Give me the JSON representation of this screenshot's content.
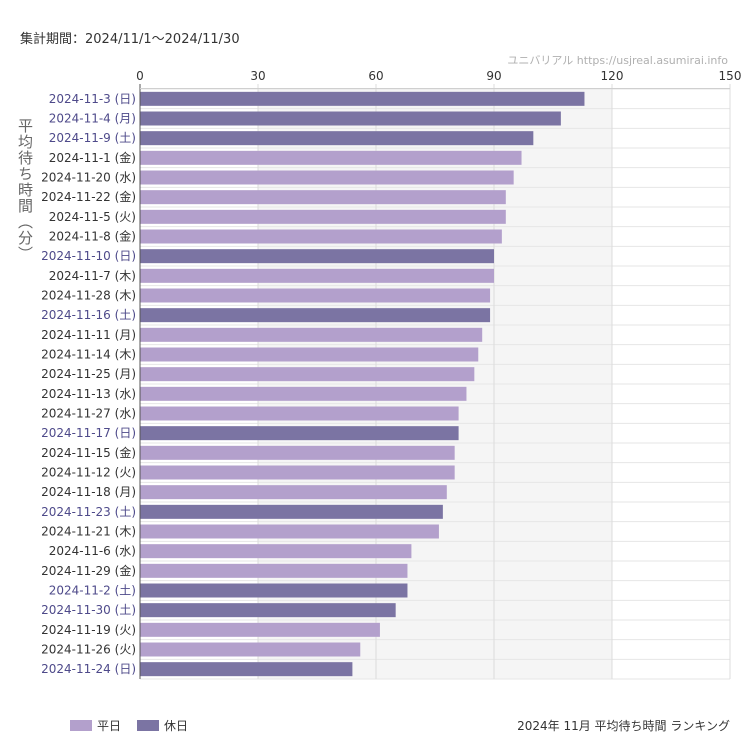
{
  "header": {
    "period": "集計期間：2024/11/1〜2024/11/30",
    "source": "ユニバリアル  https://usjreal.asumirai.info"
  },
  "footer": {
    "caption": "2024年 11月 平均待ち時間 ランキング"
  },
  "colors": {
    "weekday": "#b3a0cc",
    "holiday": "#7b74a3",
    "holiday_label": "#4e4a8a",
    "weekday_label": "#333333"
  },
  "chart_data": {
    "type": "bar",
    "orientation": "horizontal",
    "title": "",
    "ylabel": "平均待ち時間（分）",
    "xlim": [
      0,
      150
    ],
    "xticks": [
      0,
      30,
      60,
      90,
      120,
      150
    ],
    "shaded_range": [
      30,
      120
    ],
    "grid": true,
    "legend_position": "bottom-left",
    "legend": [
      {
        "key": "weekday",
        "label": "平日"
      },
      {
        "key": "holiday",
        "label": "休日"
      }
    ],
    "categories": [
      "2024-11-3 (日)",
      "2024-11-4 (月)",
      "2024-11-9 (土)",
      "2024-11-1 (金)",
      "2024-11-20 (水)",
      "2024-11-22 (金)",
      "2024-11-5 (火)",
      "2024-11-8 (金)",
      "2024-11-10 (日)",
      "2024-11-7 (木)",
      "2024-11-28 (木)",
      "2024-11-16 (土)",
      "2024-11-11 (月)",
      "2024-11-14 (木)",
      "2024-11-25 (月)",
      "2024-11-13 (水)",
      "2024-11-27 (水)",
      "2024-11-17 (日)",
      "2024-11-15 (金)",
      "2024-11-12 (火)",
      "2024-11-18 (月)",
      "2024-11-23 (土)",
      "2024-11-21 (木)",
      "2024-11-6 (水)",
      "2024-11-29 (金)",
      "2024-11-2 (土)",
      "2024-11-30 (土)",
      "2024-11-19 (火)",
      "2024-11-26 (火)",
      "2024-11-24 (日)"
    ],
    "values": [
      113,
      107,
      100,
      97,
      95,
      93,
      93,
      92,
      90,
      90,
      89,
      89,
      87,
      86,
      85,
      83,
      81,
      81,
      80,
      80,
      78,
      77,
      76,
      69,
      68,
      68,
      65,
      61,
      56,
      54
    ],
    "day_type": [
      "holiday",
      "holiday",
      "holiday",
      "weekday",
      "weekday",
      "weekday",
      "weekday",
      "weekday",
      "holiday",
      "weekday",
      "weekday",
      "holiday",
      "weekday",
      "weekday",
      "weekday",
      "weekday",
      "weekday",
      "holiday",
      "weekday",
      "weekday",
      "weekday",
      "holiday",
      "weekday",
      "weekday",
      "weekday",
      "holiday",
      "holiday",
      "weekday",
      "weekday",
      "holiday"
    ]
  }
}
